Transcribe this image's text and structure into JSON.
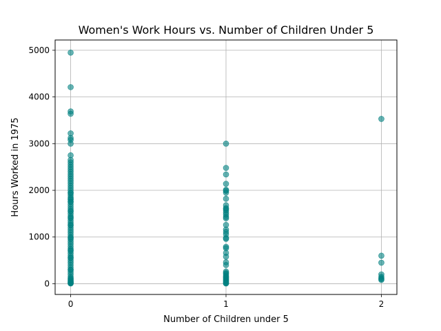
{
  "chart_data": {
    "type": "scatter",
    "title": "Women's Work Hours vs. Number of Children Under 5",
    "xlabel": "Number of Children under 5",
    "ylabel": "Hours Worked in 1975",
    "xlim": [
      -0.1,
      2.1
    ],
    "ylim": [
      -230,
      5220
    ],
    "xticks": [
      0,
      1,
      2
    ],
    "yticks": [
      0,
      1000,
      2000,
      3000,
      4000,
      5000
    ],
    "grid": true,
    "marker_color": "#008080",
    "marker_alpha": 0.6,
    "series": [
      {
        "x": [
          0,
          0,
          0,
          0,
          0,
          0,
          0,
          0,
          0,
          0,
          0,
          0,
          0,
          0,
          0,
          0,
          0,
          0,
          0,
          0,
          0,
          0,
          0,
          0,
          0,
          0,
          0,
          0,
          0,
          0,
          0,
          0,
          0,
          0,
          0,
          0,
          0,
          0,
          0,
          0,
          0,
          0,
          0,
          0,
          0,
          0,
          0,
          0,
          0,
          0,
          0,
          0,
          0,
          0,
          0,
          0,
          0,
          0,
          0,
          0,
          0,
          0,
          0,
          0,
          0,
          0,
          0,
          0,
          0,
          0,
          0,
          0,
          0,
          0,
          0,
          0,
          0,
          0,
          0,
          1,
          1,
          1,
          1,
          1,
          1,
          1,
          1,
          1,
          1,
          1,
          1,
          1,
          1,
          1,
          1,
          1,
          1,
          1,
          1,
          1,
          1,
          1,
          1,
          1,
          1,
          1,
          1,
          1,
          1,
          1,
          1,
          1,
          1,
          1,
          1,
          1,
          1,
          1,
          1,
          1,
          1,
          2,
          2,
          2,
          2,
          2,
          2,
          2,
          2
        ],
        "y": [
          4950,
          4210,
          3690,
          3640,
          3220,
          3120,
          3080,
          3000,
          2750,
          2650,
          2600,
          2550,
          2500,
          2450,
          2400,
          2350,
          2300,
          2250,
          2200,
          2150,
          2100,
          2050,
          2000,
          1950,
          1900,
          1850,
          1800,
          1750,
          1700,
          1650,
          1600,
          1550,
          1500,
          1450,
          1400,
          1350,
          1300,
          1250,
          1200,
          1150,
          1100,
          1050,
          1000,
          950,
          900,
          850,
          800,
          750,
          700,
          650,
          600,
          550,
          500,
          450,
          400,
          350,
          300,
          250,
          200,
          150,
          120,
          100,
          80,
          60,
          40,
          20,
          10,
          5,
          1940,
          1820,
          1760,
          1560,
          1420,
          1260,
          980,
          720,
          560,
          300,
          30,
          3000,
          2480,
          2340,
          2140,
          2010,
          1990,
          1950,
          1820,
          1680,
          1620,
          1600,
          1570,
          1520,
          1480,
          1430,
          1400,
          1260,
          1160,
          1110,
          1060,
          980,
          960,
          790,
          760,
          660,
          580,
          460,
          400,
          260,
          230,
          210,
          180,
          150,
          120,
          100,
          80,
          60,
          40,
          20,
          10,
          5,
          140,
          3530,
          600,
          450,
          200,
          150,
          120,
          100,
          80
        ]
      }
    ]
  }
}
